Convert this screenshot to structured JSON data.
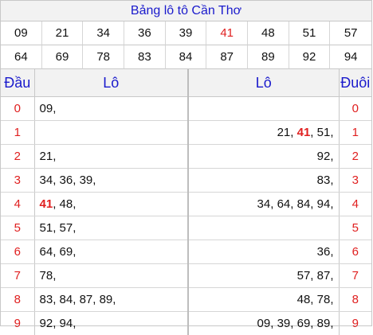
{
  "title": "Bảng lô tô Cần Thơ",
  "numbers": [
    "09",
    "21",
    "34",
    "36",
    "39",
    "41",
    "48",
    "51",
    "57",
    "64",
    "69",
    "78",
    "83",
    "84",
    "87",
    "89",
    "92",
    "94"
  ],
  "highlight_color": "#e02020",
  "accent_color": "#1a1acc",
  "headers": {
    "dau": "Đầu",
    "lo_left": "Lô",
    "lo_right": "Lô",
    "duoi": "Đuôi"
  },
  "rows": [
    {
      "dau": "0",
      "left": [
        {
          "t": "09"
        }
      ],
      "right": [],
      "duoi": "0"
    },
    {
      "dau": "1",
      "left": [],
      "right": [
        {
          "t": "21"
        },
        {
          "t": "41",
          "red": true
        },
        {
          "t": "51"
        }
      ],
      "duoi": "1"
    },
    {
      "dau": "2",
      "left": [
        {
          "t": "21"
        }
      ],
      "right": [
        {
          "t": "92"
        }
      ],
      "duoi": "2"
    },
    {
      "dau": "3",
      "left": [
        {
          "t": "34"
        },
        {
          "t": "36"
        },
        {
          "t": "39"
        }
      ],
      "right": [
        {
          "t": "83"
        }
      ],
      "duoi": "3"
    },
    {
      "dau": "4",
      "left": [
        {
          "t": "41",
          "red": true
        },
        {
          "t": "48"
        }
      ],
      "right": [
        {
          "t": "34"
        },
        {
          "t": "64"
        },
        {
          "t": "84"
        },
        {
          "t": "94"
        }
      ],
      "duoi": "4"
    },
    {
      "dau": "5",
      "left": [
        {
          "t": "51"
        },
        {
          "t": "57"
        }
      ],
      "right": [],
      "duoi": "5"
    },
    {
      "dau": "6",
      "left": [
        {
          "t": "64"
        },
        {
          "t": "69"
        }
      ],
      "right": [
        {
          "t": "36"
        }
      ],
      "duoi": "6"
    },
    {
      "dau": "7",
      "left": [
        {
          "t": "78"
        }
      ],
      "right": [
        {
          "t": "57"
        },
        {
          "t": "87"
        }
      ],
      "duoi": "7"
    },
    {
      "dau": "8",
      "left": [
        {
          "t": "83"
        },
        {
          "t": "84"
        },
        {
          "t": "87"
        },
        {
          "t": "89"
        }
      ],
      "right": [
        {
          "t": "48"
        },
        {
          "t": "78"
        }
      ],
      "duoi": "8"
    },
    {
      "dau": "9",
      "left": [
        {
          "t": "92"
        },
        {
          "t": "94"
        }
      ],
      "right": [
        {
          "t": "09"
        },
        {
          "t": "39"
        },
        {
          "t": "69"
        },
        {
          "t": "89"
        }
      ],
      "duoi": "9"
    }
  ]
}
